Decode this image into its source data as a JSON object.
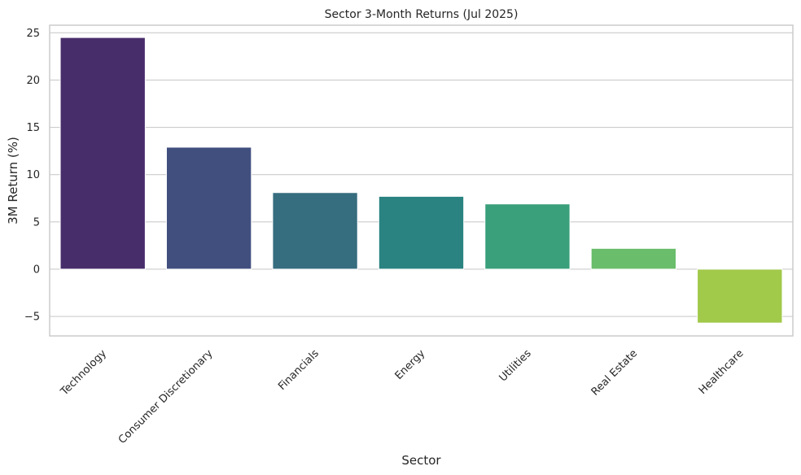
{
  "chart_data": {
    "type": "bar",
    "title": "Sector 3-Month Returns (Jul 2025)",
    "xlabel": "Sector",
    "ylabel": "3M Return (%)",
    "categories": [
      "Technology",
      "Consumer Discretionary",
      "Financials",
      "Energy",
      "Utilities",
      "Real Estate",
      "Healthcare"
    ],
    "values": [
      24.5,
      12.9,
      8.1,
      7.7,
      6.9,
      2.2,
      -5.7
    ],
    "colors": [
      "#482d6b",
      "#414f7e",
      "#366d7f",
      "#2a8380",
      "#3a9f7b",
      "#6abd6b",
      "#a1c94a"
    ],
    "yticks": [
      -5,
      0,
      5,
      10,
      15,
      20,
      25
    ],
    "ytick_labels": [
      "−5",
      "0",
      "5",
      "10",
      "15",
      "20",
      "25"
    ],
    "ylim": [
      -7.06,
      25.8
    ],
    "grid": true,
    "legend": "none"
  }
}
